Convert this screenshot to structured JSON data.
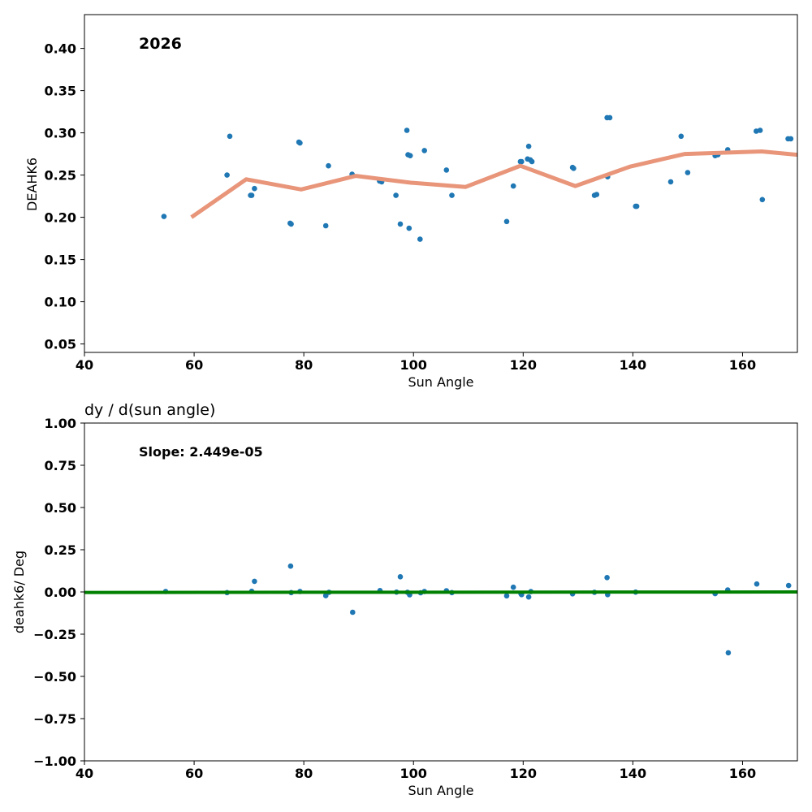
{
  "chart_data": [
    {
      "type": "scatter",
      "title": "",
      "annotation": "2026",
      "xlabel": "Sun Angle",
      "ylabel": "DEAHK6",
      "xlim": [
        40,
        170
      ],
      "ylim": [
        0.04,
        0.44
      ],
      "xticks": [
        40,
        60,
        80,
        100,
        120,
        140,
        160
      ],
      "xtick_labels": [
        "40",
        "60",
        "80",
        "100",
        "120",
        "140",
        "160"
      ],
      "yticks": [
        0.05,
        0.1,
        0.15,
        0.2,
        0.25,
        0.3,
        0.35,
        0.4
      ],
      "ytick_labels": [
        "0.05",
        "0.10",
        "0.15",
        "0.20",
        "0.25",
        "0.30",
        "0.35",
        "0.40"
      ],
      "grid": false,
      "point_color": "#1f77b4",
      "line_color": "#e8957a",
      "points": [
        [
          54.5,
          0.201
        ],
        [
          66.0,
          0.25
        ],
        [
          66.5,
          0.296
        ],
        [
          70.3,
          0.226
        ],
        [
          70.5,
          0.226
        ],
        [
          71.0,
          0.234
        ],
        [
          77.5,
          0.193
        ],
        [
          77.7,
          0.192
        ],
        [
          79.1,
          0.289
        ],
        [
          79.3,
          0.288
        ],
        [
          84.0,
          0.19
        ],
        [
          84.5,
          0.261
        ],
        [
          88.8,
          0.251
        ],
        [
          93.8,
          0.243
        ],
        [
          94.2,
          0.242
        ],
        [
          96.8,
          0.226
        ],
        [
          97.6,
          0.192
        ],
        [
          98.8,
          0.303
        ],
        [
          99.0,
          0.274
        ],
        [
          99.4,
          0.273
        ],
        [
          99.2,
          0.187
        ],
        [
          101.2,
          0.174
        ],
        [
          102.0,
          0.279
        ],
        [
          106.0,
          0.256
        ],
        [
          107.0,
          0.226
        ],
        [
          117.0,
          0.195
        ],
        [
          118.2,
          0.237
        ],
        [
          119.5,
          0.266
        ],
        [
          119.7,
          0.266
        ],
        [
          120.8,
          0.269
        ],
        [
          121.0,
          0.284
        ],
        [
          121.3,
          0.268
        ],
        [
          121.6,
          0.266
        ],
        [
          129.0,
          0.259
        ],
        [
          129.2,
          0.258
        ],
        [
          133.0,
          0.226
        ],
        [
          133.4,
          0.227
        ],
        [
          135.3,
          0.318
        ],
        [
          135.8,
          0.318
        ],
        [
          135.4,
          0.248
        ],
        [
          140.5,
          0.213
        ],
        [
          140.7,
          0.213
        ],
        [
          146.9,
          0.242
        ],
        [
          148.8,
          0.296
        ],
        [
          150.0,
          0.253
        ],
        [
          155.0,
          0.273
        ],
        [
          155.5,
          0.274
        ],
        [
          157.3,
          0.28
        ],
        [
          162.5,
          0.302
        ],
        [
          163.2,
          0.303
        ],
        [
          163.6,
          0.221
        ],
        [
          168.3,
          0.293
        ],
        [
          168.8,
          0.293
        ]
      ],
      "trend": [
        [
          59.5,
          0.2
        ],
        [
          69.5,
          0.245
        ],
        [
          79.5,
          0.233
        ],
        [
          89.5,
          0.249
        ],
        [
          99.5,
          0.241
        ],
        [
          109.5,
          0.236
        ],
        [
          119.5,
          0.261
        ],
        [
          129.5,
          0.237
        ],
        [
          139.5,
          0.26
        ],
        [
          149.5,
          0.275
        ],
        [
          163.5,
          0.278
        ],
        [
          170.0,
          0.274
        ]
      ]
    },
    {
      "type": "scatter",
      "title": "dy / d(sun angle)",
      "annotation": "Slope: 2.449e-05",
      "xlabel": "Sun Angle",
      "ylabel": "deahk6/ Deg",
      "xlim": [
        40,
        170
      ],
      "ylim": [
        -1.0,
        1.0
      ],
      "xticks": [
        40,
        60,
        80,
        100,
        120,
        140,
        160
      ],
      "xtick_labels": [
        "40",
        "60",
        "80",
        "100",
        "120",
        "140",
        "160"
      ],
      "yticks": [
        -1.0,
        -0.75,
        -0.5,
        -0.25,
        0.0,
        0.25,
        0.5,
        0.75,
        1.0
      ],
      "ytick_labels": [
        "−1.00",
        "−0.75",
        "−0.50",
        "−0.25",
        "0.00",
        "0.25",
        "0.50",
        "0.75",
        "1.00"
      ],
      "grid": false,
      "point_color": "#1f77b4",
      "line_color": "#008000",
      "points": [
        [
          54.8,
          0.003
        ],
        [
          66.0,
          -0.004
        ],
        [
          70.5,
          0.004
        ],
        [
          71.0,
          0.063
        ],
        [
          77.6,
          0.153
        ],
        [
          77.7,
          -0.004
        ],
        [
          79.3,
          0.003
        ],
        [
          84.0,
          -0.022
        ],
        [
          84.6,
          -0.002
        ],
        [
          88.9,
          -0.12
        ],
        [
          93.9,
          0.008
        ],
        [
          96.9,
          -0.001
        ],
        [
          97.6,
          0.09
        ],
        [
          98.9,
          -0.002
        ],
        [
          99.3,
          -0.017
        ],
        [
          101.3,
          -0.005
        ],
        [
          102.0,
          0.003
        ],
        [
          106.0,
          0.007
        ],
        [
          107.0,
          -0.004
        ],
        [
          117.0,
          -0.023
        ],
        [
          118.2,
          0.028
        ],
        [
          119.6,
          -0.011
        ],
        [
          119.7,
          -0.016
        ],
        [
          121.0,
          -0.03
        ],
        [
          121.4,
          0.002
        ],
        [
          129.0,
          -0.011
        ],
        [
          133.0,
          -0.002
        ],
        [
          135.3,
          0.085
        ],
        [
          135.4,
          -0.016
        ],
        [
          140.5,
          -0.001
        ],
        [
          155.0,
          -0.01
        ],
        [
          157.3,
          0.012
        ],
        [
          157.4,
          -0.36
        ],
        [
          162.6,
          0.047
        ],
        [
          168.4,
          0.038
        ]
      ],
      "trend": [
        [
          40.0,
          -0.003
        ],
        [
          170.0,
          0.0
        ]
      ]
    }
  ]
}
